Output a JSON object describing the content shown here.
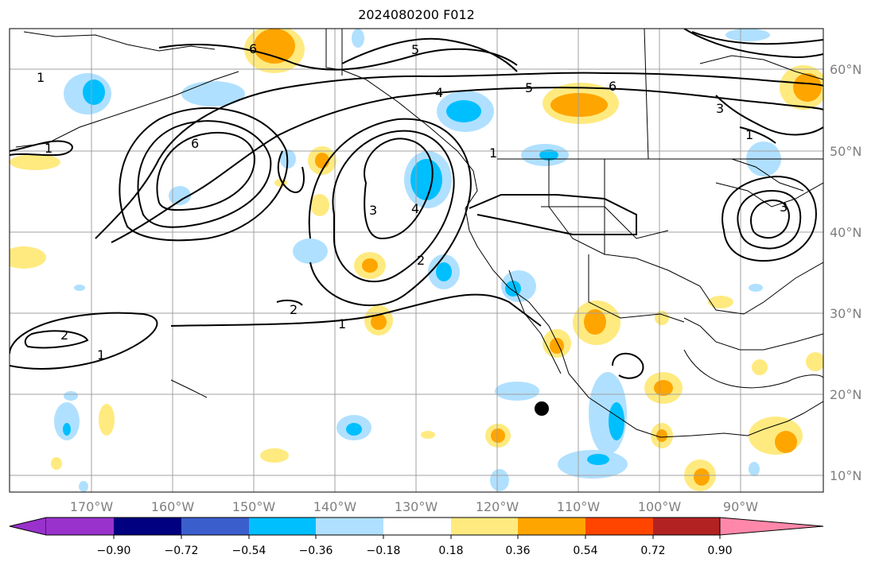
{
  "title": "2024080200 F012",
  "longitude_labels": [
    "170°W",
    "160°W",
    "150°W",
    "140°W",
    "130°W",
    "120°W",
    "110°W",
    "100°W",
    "90°W"
  ],
  "latitude_labels": [
    "60°N",
    "50°N",
    "40°N",
    "30°N",
    "20°N",
    "10°N"
  ],
  "contour_labels": [
    "1",
    "1",
    "1",
    "1",
    "1",
    "1",
    "2",
    "2",
    "2",
    "3",
    "3",
    "3",
    "4",
    "4",
    "5",
    "5",
    "6",
    "6",
    "6"
  ],
  "colorbar": {
    "colors": [
      "#9932cc",
      "#000080",
      "#3a5fcd",
      "#00bfff",
      "#b0e0ff",
      "#ffffff",
      "#ffea80",
      "#ffa500",
      "#ff4500",
      "#b22222",
      "#ff88aa"
    ],
    "tick_labels": [
      "−0.90",
      "−0.72",
      "−0.54",
      "−0.36",
      "−0.18",
      "0.18",
      "0.36",
      "0.54",
      "0.72",
      "0.90"
    ]
  },
  "colors": {
    "light_blue": "#b0e0ff",
    "blue": "#00bfff",
    "light_yellow": "#ffea80",
    "orange": "#ffa500",
    "contour": "#000000",
    "grid": "#a0a0a0",
    "tick_text": "#7f7f7f"
  }
}
